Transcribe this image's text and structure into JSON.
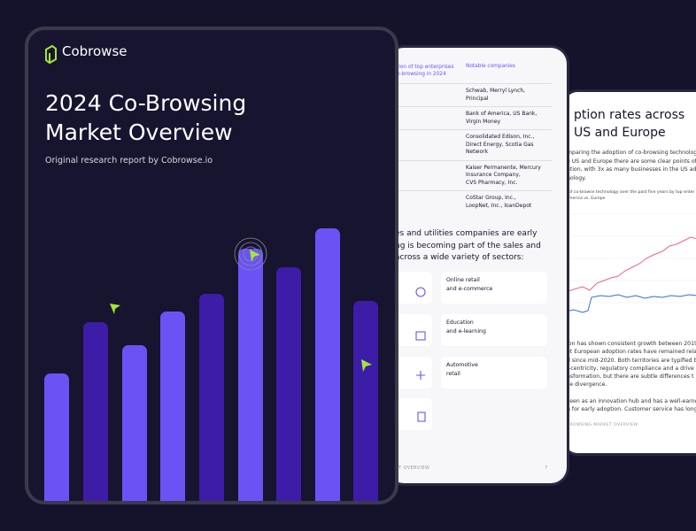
{
  "cover": {
    "brand": "Cobrowse",
    "title_lines": [
      "2024 Co-Browsing",
      "Market Overview"
    ],
    "subtitle": "Original research report by Cobrowse.io"
  },
  "table_page": {
    "table": {
      "headers": [
        [
          "tion of top enterprises",
          "o-browsing in 2024"
        ],
        "Notable companies"
      ],
      "rows": [
        [
          "Schwab, Merryl Lynch,",
          "Principal"
        ],
        [
          "Bank of America, US Bank,",
          "Virgin Money"
        ],
        [
          "Consolidated Edison, Inc.,",
          "Direct Energy, Scotia Gas",
          "Network"
        ],
        [
          "Kaiser Permanente, Mercury",
          "Insurance Company,",
          "CVS Pharmacy, Inc."
        ],
        [
          "CoStar Group, Inc.,",
          "LoopNet, Inc., loanDepot"
        ]
      ]
    },
    "intro": [
      "es and utilities companies are early",
      "ng is becoming part of the sales and",
      "across a wide variety of sectors:"
    ],
    "sectors": [
      [
        "Online retail",
        "and e-commerce"
      ],
      [
        "Education",
        "and e-learning"
      ],
      [
        "Automotive",
        "retail"
      ]
    ],
    "footer": "T OVERVIEW",
    "page_number": 7
  },
  "adoption_page": {
    "title": [
      "ption rates across",
      "US and Europe"
    ],
    "intro": [
      "mparing the adoption of co-browsing technolog",
      "e US and Europe there are some clear points of",
      "ation, with 3x as many businesses in the US ado",
      "nology."
    ],
    "chart_caption": [
      "of co-browse technology over the past five years by top enter",
      "merica vs. Europe"
    ],
    "body": [
      "ion has shown consistent growth between 2019",
      "et European adoption rates have remained relat",
      "d since mid-2020. Both territories are typified b",
      "r-centricity, regulatory compliance and a drive t",
      "nsformation, but there are subtle differences t",
      "se divergence.",
      "",
      "seen as an innovation hub and has a well-earne",
      "n for early adoption. Customer service has long"
    ],
    "footer": "BROWSING MARKET OVERVIEW"
  }
}
